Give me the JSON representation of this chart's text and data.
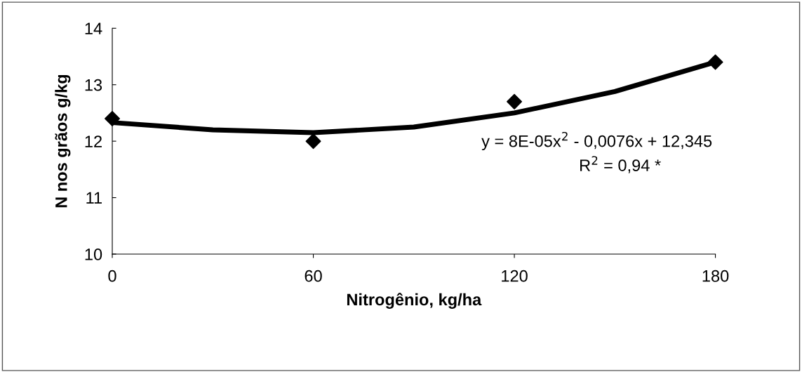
{
  "chart_data": {
    "type": "scatter",
    "xlabel": "Nitrogênio, kg/ha",
    "ylabel": "N nos grãos g/kg",
    "x": [
      0,
      60,
      120,
      180
    ],
    "series": [
      {
        "color": "#000000",
        "marker": "diamond",
        "values": [
          12.4,
          12.0,
          12.7,
          13.4
        ]
      },
      {
        "type": "line",
        "color": "#000000",
        "marker": "none",
        "line_style": "solid",
        "x": [
          0,
          30,
          60,
          90,
          120,
          150,
          180
        ],
        "values": [
          12.33,
          12.2,
          12.15,
          12.25,
          12.5,
          12.88,
          13.4
        ]
      }
    ],
    "xlim": [
      0,
      180
    ],
    "xticks": [
      0,
      60,
      120,
      180
    ],
    "ylim": [
      10,
      14
    ],
    "yticks": [
      10,
      11,
      12,
      13,
      14
    ],
    "grid": false,
    "legend": false,
    "annotations": [
      "y = 8E-05x$^{2}$ - 0,0076x + 12,345",
      "R$^{2}$ = 0,94 *"
    ]
  }
}
